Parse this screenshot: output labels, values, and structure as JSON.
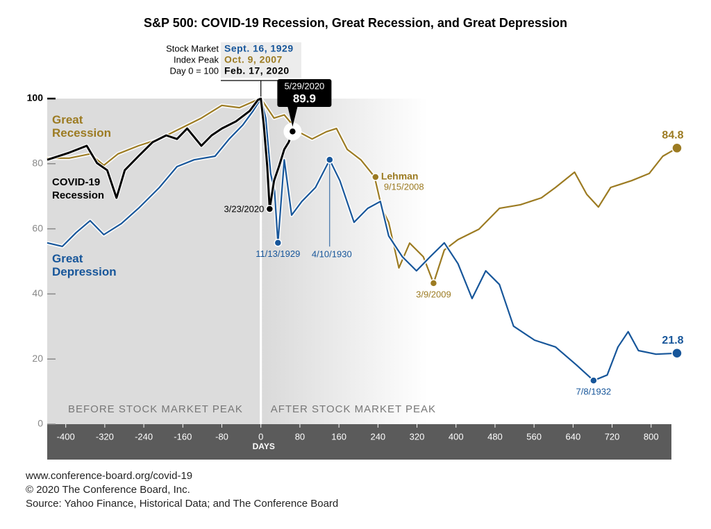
{
  "chart_data": {
    "type": "line",
    "title": "S&P 500: COVID-19 Recession, Great Recession, and Great Depression",
    "peak_label_lines": [
      "Stock Market",
      "Index Peak",
      "Day 0 = 100"
    ],
    "x_label": "DAYS",
    "region_labels": [
      "BEFORE STOCK MARKET PEAK",
      "AFTER STOCK MARKET PEAK"
    ],
    "xlim": [
      -438,
      853
    ],
    "xticks": [
      -400,
      -320,
      -240,
      -160,
      -80,
      0,
      80,
      160,
      240,
      320,
      400,
      480,
      560,
      640,
      720,
      800
    ],
    "ylim": [
      0,
      100
    ],
    "yticks": [
      0,
      20,
      40,
      60,
      80,
      100
    ],
    "series": [
      {
        "name": "Great Recession",
        "color": "#9c7b22",
        "peak_date": "Oct. 9, 2007",
        "x": [
          -438,
          -393,
          -350,
          -322,
          -293,
          -251,
          -208,
          -165,
          -122,
          -80,
          -44,
          -9,
          0,
          27,
          48,
          77,
          105,
          134,
          155,
          177,
          205,
          233,
          248,
          262,
          283,
          305,
          333,
          354,
          376,
          404,
          447,
          489,
          532,
          575,
          604,
          643,
          668,
          692,
          717,
          760,
          796,
          824,
          853
        ],
        "values": [
          81.7,
          81.7,
          83,
          79.5,
          83,
          85.5,
          87.6,
          90.8,
          94,
          97.9,
          97.2,
          99.5,
          100,
          94,
          95,
          89.8,
          87.6,
          89.8,
          90.8,
          84.4,
          81.2,
          76,
          66.3,
          62,
          48,
          55.6,
          51.4,
          43.3,
          53.5,
          56.7,
          59.9,
          66.3,
          67.4,
          69.5,
          72.7,
          77.4,
          70.6,
          66.7,
          72.7,
          74.8,
          77,
          82.3,
          84.8
        ]
      },
      {
        "name": "COVID-19 Recession",
        "color": "#000000",
        "peak_date": "Feb. 17, 2020",
        "x": [
          -438,
          -393,
          -357,
          -336,
          -315,
          -296,
          -279,
          -251,
          -222,
          -194,
          -172,
          -151,
          -122,
          -101,
          -80,
          -51,
          -23,
          -6,
          0,
          6,
          13,
          18,
          27,
          37,
          48,
          57,
          65
        ],
        "values": [
          81.2,
          83.4,
          85.5,
          80.2,
          78,
          69.5,
          78,
          82.3,
          86.6,
          88.7,
          87.6,
          90.8,
          85.5,
          88.7,
          90.8,
          93,
          96.2,
          99.6,
          100,
          91.9,
          79.1,
          66.1,
          74.8,
          79.1,
          84.4,
          86.6,
          89.9
        ]
      },
      {
        "name": "Great Depression",
        "color": "#17569a",
        "peak_date": "Sept. 16, 1929",
        "x": [
          -438,
          -407,
          -379,
          -350,
          -322,
          -286,
          -251,
          -208,
          -172,
          -137,
          -94,
          -65,
          -37,
          -16,
          0,
          10,
          20,
          28,
          35,
          48,
          63,
          84,
          112,
          141,
          162,
          191,
          219,
          245,
          262,
          290,
          319,
          347,
          376,
          404,
          433,
          461,
          489,
          518,
          561,
          604,
          646,
          682,
          710,
          732,
          753,
          774,
          810,
          853
        ],
        "values": [
          55.7,
          54.6,
          58.8,
          62.5,
          58.2,
          61.6,
          66.3,
          72.7,
          79.1,
          81.2,
          82.3,
          87.6,
          91.9,
          96.2,
          100,
          94,
          77,
          71.6,
          55.7,
          81.2,
          64.2,
          68.4,
          72.7,
          81.2,
          74.8,
          62,
          66.3,
          68.4,
          57.8,
          51.4,
          47.1,
          51.4,
          55.7,
          49.3,
          38.6,
          47.1,
          42.9,
          30.1,
          25.8,
          23.7,
          18.3,
          13.4,
          15.1,
          23.7,
          28.4,
          22.6,
          21.5,
          21.8
        ]
      }
    ],
    "annotations": [
      {
        "label": "3/23/2020",
        "x": 18,
        "y": 66.1,
        "color": "#000000"
      },
      {
        "label": "11/13/1929",
        "x": 35,
        "y": 55.7,
        "color": "#17569a"
      },
      {
        "label": "4/10/1930",
        "x": 141,
        "y": 81.2,
        "color": "#17569a"
      },
      {
        "label": "Lehman",
        "date": "9/15/2008",
        "x": 235,
        "y": 75.9,
        "color": "#9c7b22"
      },
      {
        "label": "3/9/2009",
        "x": 354,
        "y": 43.3,
        "color": "#9c7b22"
      },
      {
        "label": "7/8/1932",
        "x": 682,
        "y": 13.4,
        "color": "#17569a"
      },
      {
        "label": "5/29/2020",
        "x": 65,
        "y": 89.9,
        "color": "#000000"
      }
    ],
    "footer": [
      "www.conference-board.org/covid-19",
      "© 2020 The Conference Board, Inc.",
      "Source: Yahoo Finance, Historical Data; and The Conference Board"
    ]
  }
}
